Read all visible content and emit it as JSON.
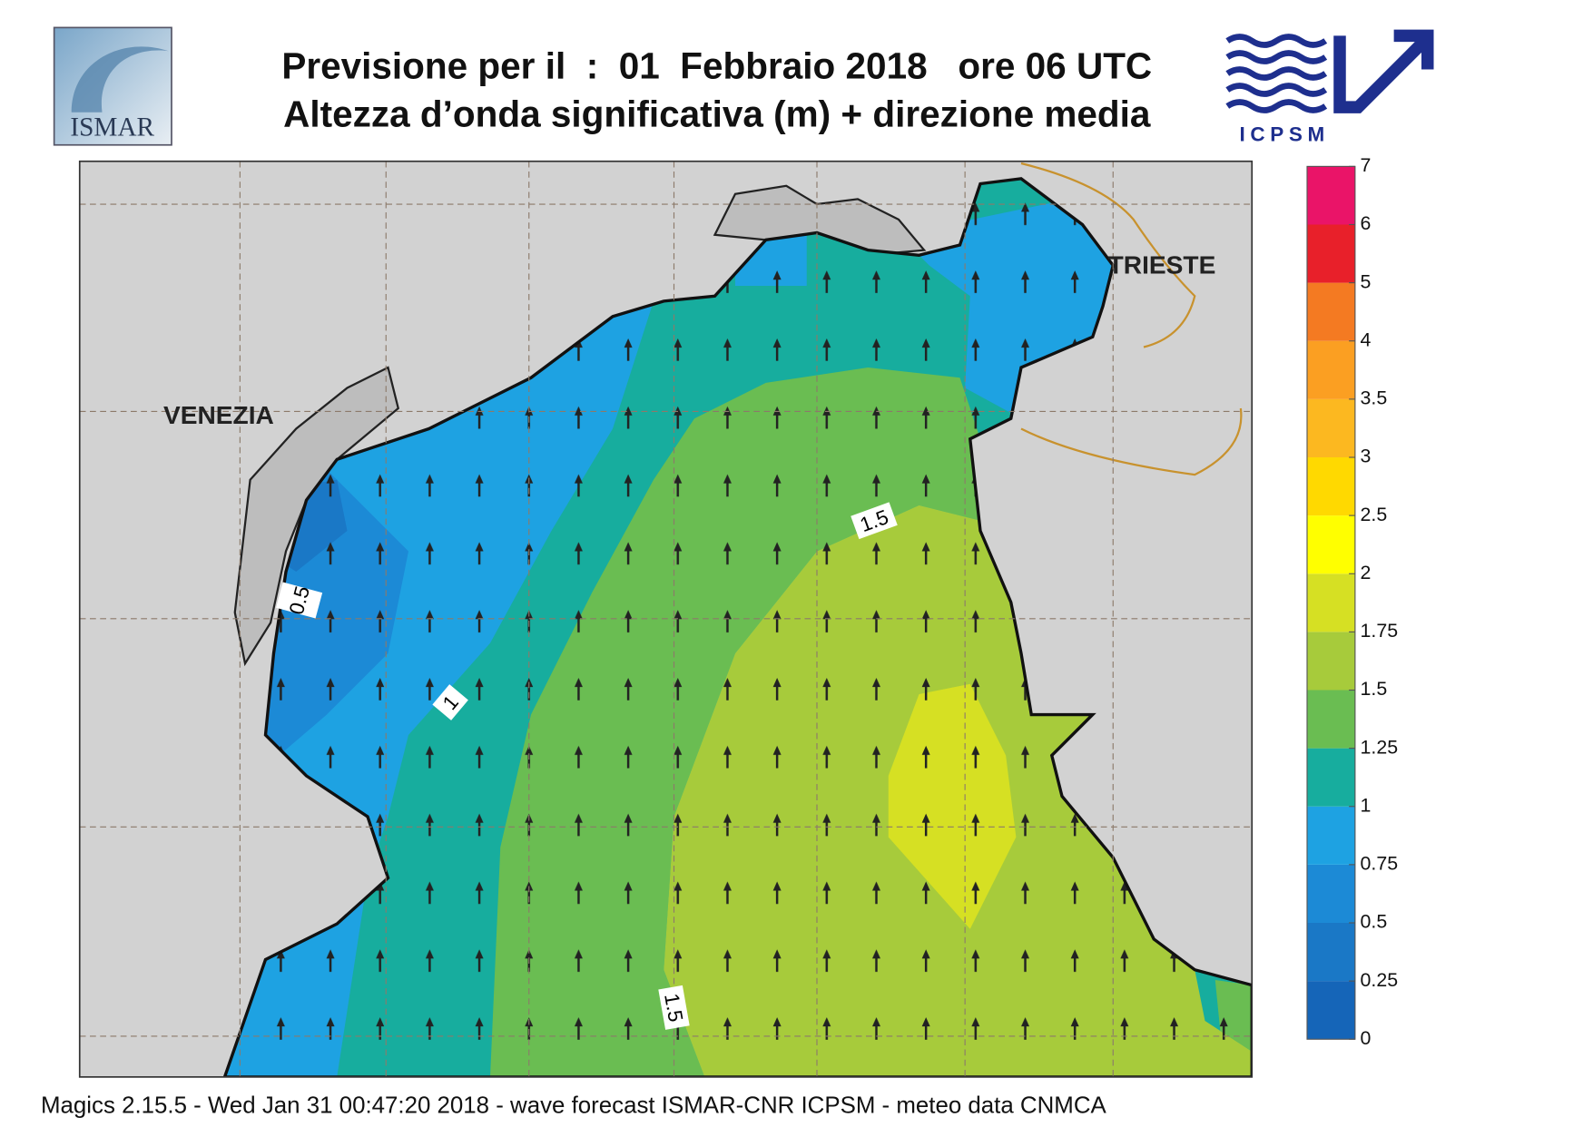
{
  "header": {
    "title_line1": "Previsione per il  :  01  Febbraio 2018   ore 06 UTC",
    "title_line2": "Altezza d’onda significativa (m) + direzione media",
    "logo_left": "ISMAR",
    "logo_right": "ICPSM"
  },
  "map": {
    "places": [
      "VENEZIA",
      "TRIESTE"
    ],
    "contour_labels": [
      "0.5",
      "1",
      "1.5",
      "1.5"
    ]
  },
  "colorbar": {
    "levels": [
      0,
      0.25,
      0.5,
      0.75,
      1,
      1.25,
      1.5,
      1.75,
      2,
      2.5,
      3,
      3.5,
      4,
      5,
      6,
      7
    ],
    "colors": [
      "#1565b8",
      "#1a78c6",
      "#1c8ad6",
      "#1ea2e2",
      "#17ad9e",
      "#6abd52",
      "#a7cb3b",
      "#d6e023",
      "#ffff00",
      "#ffd900",
      "#fcb820",
      "#fb9f22",
      "#f47a22",
      "#e8202a",
      "#ea1468"
    ]
  },
  "footer": "Magics 2.15.5 - Wed Jan 31 00:47:20 2018 - wave forecast  ISMAR-CNR  ICPSM - meteo data   CNMCA"
}
